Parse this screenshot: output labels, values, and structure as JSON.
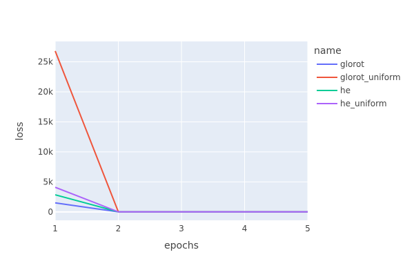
{
  "chart_data": {
    "type": "line",
    "xlabel": "epochs",
    "ylabel": "loss",
    "x": [
      1,
      2,
      3,
      4,
      5
    ],
    "x_ticks": [
      1,
      2,
      3,
      4,
      5
    ],
    "y_ticks": [
      {
        "value": 0,
        "label": "0"
      },
      {
        "value": 5000,
        "label": "5k"
      },
      {
        "value": 10000,
        "label": "10k"
      },
      {
        "value": 15000,
        "label": "15k"
      },
      {
        "value": 20000,
        "label": "20k"
      },
      {
        "value": 25000,
        "label": "25k"
      }
    ],
    "xlim": [
      1,
      5
    ],
    "ylim": [
      -1400,
      28400
    ],
    "grid": true,
    "legend_title": "name",
    "legend_position": "top-right",
    "plot_background": "#e5ecf6",
    "grid_color": "#ffffff",
    "series": [
      {
        "name": "glorot",
        "color": "#636efa",
        "values": [
          1500,
          10,
          5,
          5,
          5
        ]
      },
      {
        "name": "glorot_uniform",
        "color": "#ef553b",
        "values": [
          26800,
          10,
          5,
          5,
          5
        ]
      },
      {
        "name": "he",
        "color": "#00cc96",
        "values": [
          2850,
          10,
          5,
          5,
          5
        ]
      },
      {
        "name": "he_uniform",
        "color": "#ab63fa",
        "values": [
          4100,
          10,
          5,
          5,
          5
        ]
      }
    ]
  }
}
